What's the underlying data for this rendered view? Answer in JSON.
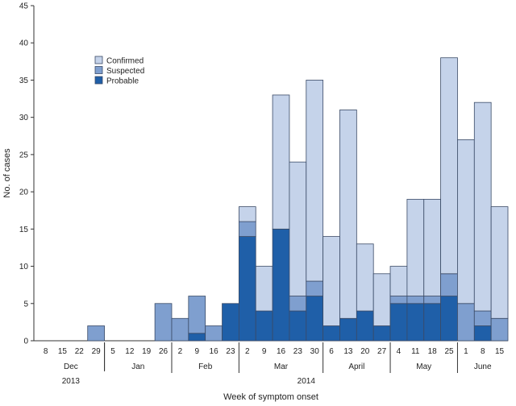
{
  "chart_data": {
    "type": "bar",
    "stacked": true,
    "ylabel": "No. of cases",
    "xlabel": "Week of symptom onset",
    "ylim": [
      0,
      45
    ],
    "yticks": [
      0,
      5,
      10,
      15,
      20,
      25,
      30,
      35,
      40,
      45
    ],
    "categories": [
      "8",
      "15",
      "22",
      "29",
      "5",
      "12",
      "19",
      "26",
      "2",
      "9",
      "16",
      "23",
      "2",
      "9",
      "16",
      "23",
      "30",
      "6",
      "13",
      "20",
      "27",
      "4",
      "11",
      "18",
      "25",
      "1",
      "8",
      "15"
    ],
    "months": [
      "Dec",
      "Jan",
      "Feb",
      "Mar",
      "April",
      "May",
      "June"
    ],
    "years": [
      "2013",
      "2014"
    ],
    "legend": {
      "position": "upper-left",
      "entries": [
        "Confirmed",
        "Suspected",
        "Probable"
      ]
    },
    "series": [
      {
        "name": "Probable",
        "color": "#1f5fa8",
        "values": [
          0,
          0,
          0,
          0,
          0,
          0,
          0,
          0,
          0,
          1,
          0,
          5,
          14,
          4,
          15,
          4,
          6,
          2,
          3,
          4,
          2,
          5,
          5,
          5,
          6,
          0,
          2,
          0
        ]
      },
      {
        "name": "Suspected",
        "color": "#7f9fcf",
        "values": [
          0,
          0,
          0,
          2,
          0,
          0,
          0,
          5,
          3,
          5,
          2,
          0,
          2,
          0,
          0,
          2,
          2,
          0,
          0,
          0,
          0,
          1,
          1,
          1,
          3,
          5,
          2,
          3
        ]
      },
      {
        "name": "Confirmed",
        "color": "#c5d3ea",
        "values": [
          0,
          0,
          0,
          0,
          0,
          0,
          0,
          0,
          0,
          0,
          0,
          0,
          2,
          6,
          18,
          18,
          27,
          12,
          28,
          9,
          7,
          4,
          13,
          13,
          29,
          22,
          28,
          15
        ]
      }
    ]
  }
}
